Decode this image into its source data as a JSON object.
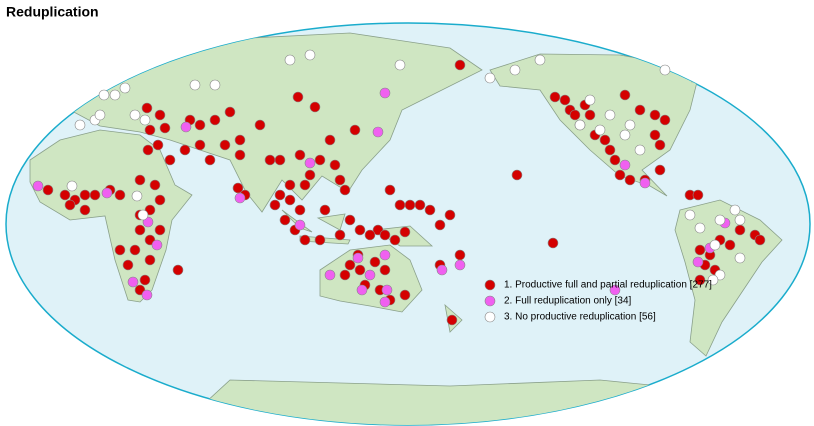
{
  "title": "Reduplication",
  "legend": [
    {
      "label": "1. Productive full and partial reduplication [277]",
      "color": "#d40000"
    },
    {
      "label": "2. Full reduplication only [34]",
      "color": "#f060f0"
    },
    {
      "label": "3. No productive reduplication [56]",
      "color": "#ffffff"
    }
  ]
}
